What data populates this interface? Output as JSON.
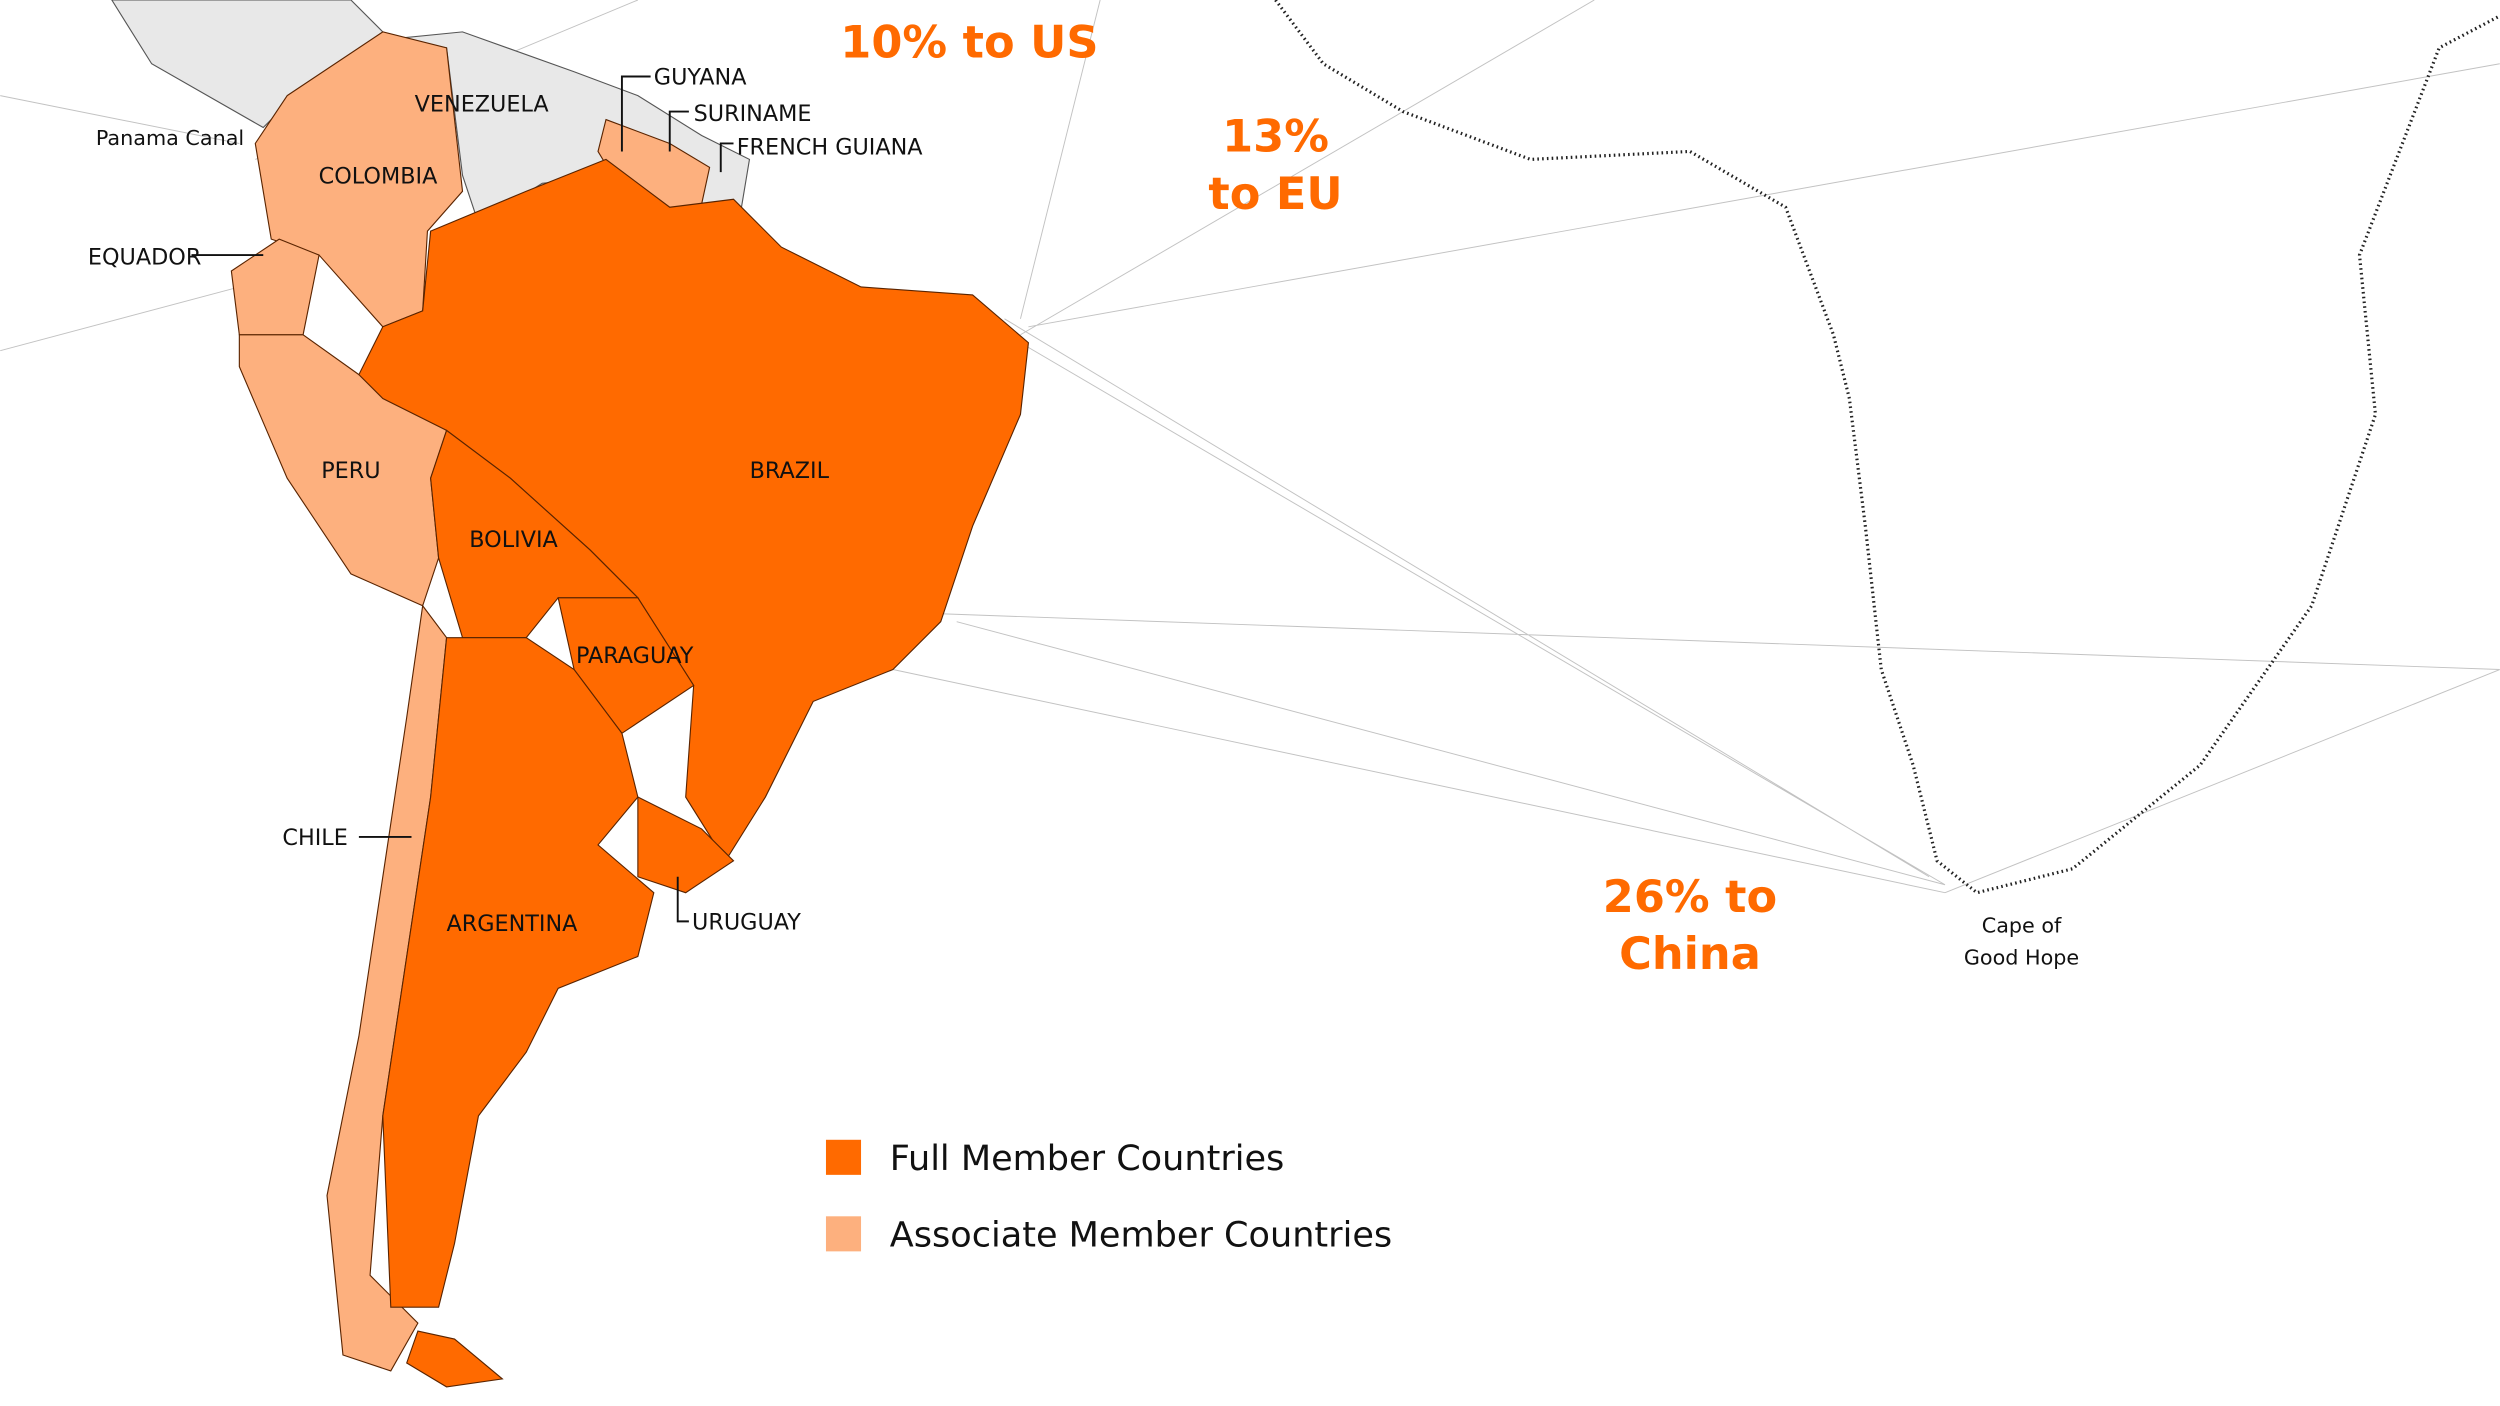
{
  "countries": [
    "VENEZUELA",
    "GUYANA",
    "SURINAME",
    "FRENCH GUIANA",
    "COLOMBIA",
    "EQUADOR",
    "PERU",
    "BRAZIL",
    "BOLIVIA",
    "PARAGUAY",
    "CHILE",
    "ARGENTINA",
    "URUGUAY"
  ],
  "places": {
    "panama": "Panama Canal",
    "cape": [
      "Cape of",
      "Good Hope"
    ]
  },
  "annotations": {
    "us": [
      "10% to US"
    ],
    "eu": [
      "13%",
      "to EU"
    ],
    "china": [
      "26% to",
      "China"
    ]
  },
  "legend": [
    {
      "label": "Full Member Countries",
      "color": "#ff6a00"
    },
    {
      "label": "Associate Member Countries",
      "color": "#fdb07e"
    }
  ]
}
